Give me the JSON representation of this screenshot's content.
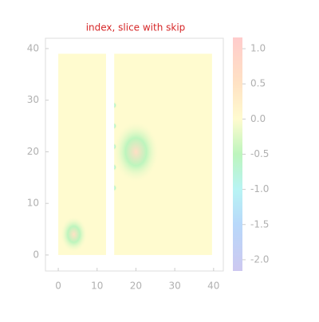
{
  "chart_data": {
    "type": "image",
    "title": "index, slice with skip",
    "xlim": [
      -3.3,
      42.5
    ],
    "xticks": [
      0,
      10,
      20,
      30,
      40
    ],
    "ylim": [
      -3.1,
      42
    ],
    "yticks": [
      0,
      10,
      20,
      30,
      40
    ],
    "background_value": 0,
    "regions": [
      {
        "x": [
          0,
          12.3
        ],
        "y": [
          0,
          39
        ]
      },
      {
        "x": [
          14.4,
          39.6
        ],
        "y": [
          0,
          39
        ]
      }
    ],
    "sources": [
      {
        "x": 20,
        "y": 20,
        "value": 0.6,
        "ring": -0.5,
        "radius": 6
      },
      {
        "x": 4,
        "y": 4,
        "value": 0.5,
        "ring": -0.5,
        "radius": 3.5
      },
      {
        "x": 14.4,
        "y": 13,
        "value": -1,
        "ring": -0.5,
        "radius": 0.7
      },
      {
        "x": 14.4,
        "y": 17,
        "value": -1,
        "ring": -0.5,
        "radius": 0.7
      },
      {
        "x": 14.4,
        "y": 21,
        "value": -1,
        "ring": -0.5,
        "radius": 0.7
      },
      {
        "x": 14.4,
        "y": 25,
        "value": -1,
        "ring": -0.5,
        "radius": 0.7
      },
      {
        "x": 14.4,
        "y": 29,
        "value": -1,
        "ring": -0.5,
        "radius": 0.7
      }
    ],
    "clim": [
      -2.16,
      1.16
    ],
    "cticks": [
      {
        "value": -2,
        "label": "-2.0"
      },
      {
        "value": -1.5,
        "label": "-1.5"
      },
      {
        "value": -1,
        "label": "-1.0"
      },
      {
        "value": -0.5,
        "label": "-0.5"
      },
      {
        "value": 0,
        "label": "0.0"
      },
      {
        "value": 0.5,
        "label": "0.5"
      },
      {
        "value": 1,
        "label": "1.0"
      }
    ],
    "colormap": [
      {
        "value": -2.16,
        "color": "#cdc8f0"
      },
      {
        "value": -1.5,
        "color": "#b8d8fa"
      },
      {
        "value": -1,
        "color": "#b8f4f4"
      },
      {
        "value": -0.5,
        "color": "#bdf5bd"
      },
      {
        "value": 0,
        "color": "#fffbcf"
      },
      {
        "value": 0.5,
        "color": "#ffe2c4"
      },
      {
        "value": 1.16,
        "color": "#ffcccc"
      }
    ]
  }
}
